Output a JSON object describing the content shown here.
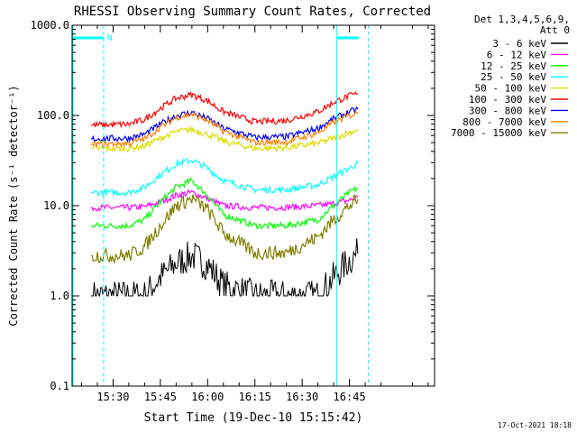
{
  "chart_data": {
    "type": "line",
    "title": "RHESSI Observing Summary Count Rates, Corrected",
    "xlabel": "Start Time (19-Dec-10 15:15:42)",
    "ylabel": "Corrected Count Rate (s⁻¹ detector⁻¹)",
    "yscale": "log",
    "ylim": [
      0.1,
      1000.0
    ],
    "xlim_minutes_after_1515": [
      2.0,
      117.0
    ],
    "x_tick_labels": [
      "15:30",
      "15:45",
      "16:00",
      "16:15",
      "16:30",
      "16:45"
    ],
    "y_tick_labels": [
      "0.1",
      "1.0",
      "10.0",
      "100.0",
      "1000.0"
    ],
    "grid": false,
    "legend_placement": "top-right, outside plot",
    "legend_header": [
      "Det 1,3,4,5,6,9,",
      "Att 0"
    ],
    "series": [
      {
        "name": "3 - 6 keV",
        "color": "#000000",
        "x": [
          "15:23",
          "15:35",
          "15:40",
          "15:45",
          "15:50",
          "15:55",
          "16:00",
          "16:05",
          "16:15",
          "16:25",
          "16:35",
          "16:40",
          "16:45",
          "16:48"
        ],
        "values": [
          1.0,
          1.0,
          1.0,
          1.6,
          2.3,
          2.8,
          2.2,
          1.3,
          1.0,
          1.0,
          1.0,
          1.6,
          2.5,
          3.0
        ]
      },
      {
        "name": "6 - 12 keV",
        "color": "#ff00ff",
        "x": [
          "15:23",
          "15:35",
          "15:40",
          "15:45",
          "15:50",
          "15:55",
          "16:00",
          "16:05",
          "16:15",
          "16:25",
          "16:35",
          "16:40",
          "16:45",
          "16:48"
        ],
        "values": [
          9.5,
          9.5,
          9.7,
          11.0,
          13.0,
          14.0,
          12.0,
          10.0,
          9.5,
          9.6,
          10.0,
          10.5,
          11.5,
          12.5
        ]
      },
      {
        "name": "12 - 25 keV",
        "color": "#00ff00",
        "x": [
          "15:23",
          "15:35",
          "15:40",
          "15:45",
          "15:50",
          "15:55",
          "16:00",
          "16:05",
          "16:15",
          "16:25",
          "16:35",
          "16:40",
          "16:45",
          "16:48"
        ],
        "values": [
          6.0,
          6.0,
          7.0,
          11.0,
          16.0,
          19.0,
          13.0,
          8.0,
          6.0,
          6.0,
          7.0,
          10.0,
          14.0,
          16.0
        ]
      },
      {
        "name": "25 - 50 keV",
        "color": "#00ffff",
        "x": [
          "15:23",
          "15:35",
          "15:40",
          "15:45",
          "15:50",
          "15:55",
          "16:00",
          "16:05",
          "16:15",
          "16:25",
          "16:35",
          "16:40",
          "16:45",
          "16:48"
        ],
        "values": [
          14.0,
          14.0,
          16.0,
          22.0,
          29.0,
          32.0,
          26.0,
          19.0,
          15.0,
          15.0,
          17.0,
          21.0,
          26.0,
          30.0
        ]
      },
      {
        "name": "50 - 100 keV",
        "color": "#dddd00",
        "x": [
          "15:23",
          "15:35",
          "15:40",
          "15:45",
          "15:50",
          "15:55",
          "16:00",
          "16:05",
          "16:15",
          "16:25",
          "16:35",
          "16:40",
          "16:45",
          "16:48"
        ],
        "values": [
          43.0,
          43.0,
          46.0,
          56.0,
          66.0,
          70.0,
          62.0,
          52.0,
          43.0,
          44.0,
          49.0,
          56.0,
          65.0,
          70.0
        ]
      },
      {
        "name": "100 - 300 keV",
        "color": "#ff0000",
        "x": [
          "15:23",
          "15:35",
          "15:40",
          "15:45",
          "15:50",
          "15:55",
          "16:00",
          "16:05",
          "16:15",
          "16:25",
          "16:35",
          "16:40",
          "16:45",
          "16:48"
        ],
        "values": [
          78.0,
          80.0,
          90.0,
          120.0,
          155.0,
          170.0,
          145.0,
          110.0,
          85.0,
          88.0,
          110.0,
          140.0,
          165.0,
          175.0
        ]
      },
      {
        "name": "300 - 800 keV",
        "color": "#0000ff",
        "x": [
          "15:23",
          "15:35",
          "15:40",
          "15:45",
          "15:50",
          "15:55",
          "16:00",
          "16:05",
          "16:15",
          "16:25",
          "16:35",
          "16:40",
          "16:45",
          "16:48"
        ],
        "values": [
          55.0,
          56.0,
          62.0,
          80.0,
          100.0,
          108.0,
          92.0,
          72.0,
          57.0,
          58.0,
          72.0,
          92.0,
          110.0,
          118.0
        ]
      },
      {
        "name": "800 - 7000 keV",
        "color": "#ff8000",
        "x": [
          "15:23",
          "15:35",
          "15:40",
          "15:45",
          "15:50",
          "15:55",
          "16:00",
          "16:05",
          "16:15",
          "16:25",
          "16:35",
          "16:40",
          "16:45",
          "16:48"
        ],
        "values": [
          48.0,
          49.0,
          55.0,
          74.0,
          95.0,
          103.0,
          88.0,
          67.0,
          50.0,
          51.0,
          64.0,
          84.0,
          100.0,
          108.0
        ]
      },
      {
        "name": "7000 - 15000 keV",
        "color": "#808000",
        "x": [
          "15:23",
          "15:35",
          "15:40",
          "15:45",
          "15:50",
          "15:55",
          "16:00",
          "16:05",
          "16:15",
          "16:25",
          "16:35",
          "16:40",
          "16:45",
          "16:48"
        ],
        "values": [
          2.8,
          2.8,
          3.5,
          6.0,
          10.0,
          12.0,
          9.0,
          5.0,
          3.0,
          3.0,
          4.5,
          7.0,
          10.0,
          12.0
        ]
      }
    ],
    "annotations": {
      "attenuator_bars": {
        "color": "#00ffff",
        "from": [
          "15:15:42",
          "16:41"
        ],
        "to": [
          "15:27",
          "16:48"
        ]
      },
      "cyan_solid_lines_at": [
        "15:15:42",
        "16:41"
      ],
      "cyan_dashed_lines_at": [
        "15:27",
        "16:51"
      ],
      "marker_label": "N"
    }
  },
  "footer": {
    "timestamp": "17-Oct-2021 18:18"
  }
}
